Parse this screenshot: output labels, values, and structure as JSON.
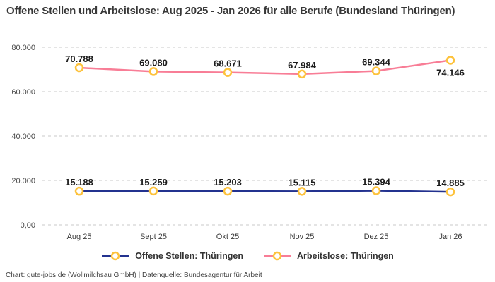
{
  "title": "Offene Stellen und Arbeitslose: Aug 2025 - Jan 2026 für alle Berufe (Bundesland Thüringen)",
  "footer": "Chart: gute-jobs.de (Wollmilchsau GmbH) | Datenquelle: Bundesagentur für Arbeit",
  "legend": {
    "items": [
      {
        "label": "Offene Stellen: Thüringen",
        "color": "#23328f"
      },
      {
        "label": "Arbeitslose: Thüringen",
        "color": "#f87d96"
      }
    ]
  },
  "colors": {
    "marker_ring": "#fdc23c",
    "marker_fill": "#ffffff",
    "gridline": "#c8c8c8",
    "axis_text": "#4a4a4a",
    "data_label": "#1b1b1b"
  },
  "chart_data": {
    "type": "line",
    "title": "Offene Stellen und Arbeitslose: Aug 2025 - Jan 2026 für alle Berufe (Bundesland Thüringen)",
    "categories": [
      "Aug 25",
      "Sept 25",
      "Okt 25",
      "Nov 25",
      "Dez 25",
      "Jan 26"
    ],
    "series": [
      {
        "name": "Offene Stellen: Thüringen",
        "color": "#23328f",
        "values": [
          15188,
          15259,
          15203,
          15115,
          15394,
          14885
        ],
        "labels": [
          "15.188",
          "15.259",
          "15.203",
          "15.115",
          "15.394",
          "14.885"
        ],
        "last_label_below": false
      },
      {
        "name": "Arbeitslose: Thüringen",
        "color": "#f87d96",
        "values": [
          70788,
          69080,
          68671,
          67984,
          69344,
          74146
        ],
        "labels": [
          "70.788",
          "69.080",
          "68.671",
          "67.984",
          "69.344",
          "74.146"
        ],
        "last_label_below": true
      }
    ],
    "marker_color": "#fdc23c",
    "xlabel": "",
    "ylabel": "",
    "ylim": [
      0,
      80000
    ],
    "yticks": [
      0,
      20000,
      40000,
      60000,
      80000
    ],
    "ytick_labels": [
      "0,00",
      "20.000",
      "40.000",
      "60.000",
      "80.000"
    ],
    "grid": "horizontal-dashed",
    "legend_position": "bottom-center"
  }
}
